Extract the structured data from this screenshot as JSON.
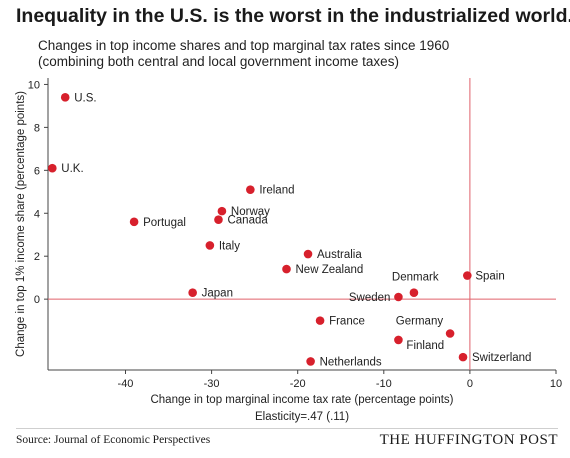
{
  "header": {
    "title": "Inequality in the U.S. is the worst in the industrialized world.",
    "subtitle_line1": "Changes in top income shares and top marginal tax rates since 1960",
    "subtitle_line2": "(combining both central and local government income taxes)"
  },
  "footer": {
    "source": "Source: Journal of Economic Perspectives",
    "brand": "THE HUFFINGTON POST"
  },
  "chart_data": {
    "type": "scatter",
    "xlabel": "Change in top marginal income tax rate (percentage points)",
    "ylabel": "Change in top 1% income share (percentage points)",
    "annotation": "Elasticity=.47 (.11)",
    "xlim": [
      -49,
      10
    ],
    "ylim": [
      -3.3,
      10.3
    ],
    "xticks": [
      -40,
      -30,
      -20,
      -10,
      0,
      10
    ],
    "xtick_labels": [
      "-40",
      "-30",
      "-20",
      "-10",
      "0",
      "10"
    ],
    "yticks": [
      0,
      2,
      4,
      6,
      8,
      10
    ],
    "ytick_labels": [
      "0",
      "2",
      "4",
      "6",
      "8",
      "10"
    ],
    "marker_color": "#d7202c",
    "reference_line_color": "#e0606a",
    "points": [
      {
        "label": "U.S.",
        "x": -47,
        "y": 9.4
      },
      {
        "label": "U.K.",
        "x": -48.5,
        "y": 6.1
      },
      {
        "label": "Ireland",
        "x": -25.5,
        "y": 5.1
      },
      {
        "label": "Norway",
        "x": -28.8,
        "y": 4.1
      },
      {
        "label": "Canada",
        "x": -29.2,
        "y": 3.7
      },
      {
        "label": "Portugal",
        "x": -39,
        "y": 3.6
      },
      {
        "label": "Italy",
        "x": -30.2,
        "y": 2.5
      },
      {
        "label": "Australia",
        "x": -18.8,
        "y": 2.1
      },
      {
        "label": "New Zealand",
        "x": -21.3,
        "y": 1.4
      },
      {
        "label": "Japan",
        "x": -32.2,
        "y": 0.3
      },
      {
        "label": "Spain",
        "x": -0.3,
        "y": 1.1
      },
      {
        "label": "Denmark",
        "x": -6.5,
        "y": 0.3
      },
      {
        "label": "Sweden",
        "x": -8.3,
        "y": 0.1
      },
      {
        "label": "France",
        "x": -17.4,
        "y": -1.0
      },
      {
        "label": "Germany",
        "x": -2.3,
        "y": -1.6
      },
      {
        "label": "Finland",
        "x": -8.3,
        "y": -1.9
      },
      {
        "label": "Switzerland",
        "x": -0.8,
        "y": -2.7
      },
      {
        "label": "Netherlands",
        "x": -18.5,
        "y": -2.9
      }
    ]
  }
}
